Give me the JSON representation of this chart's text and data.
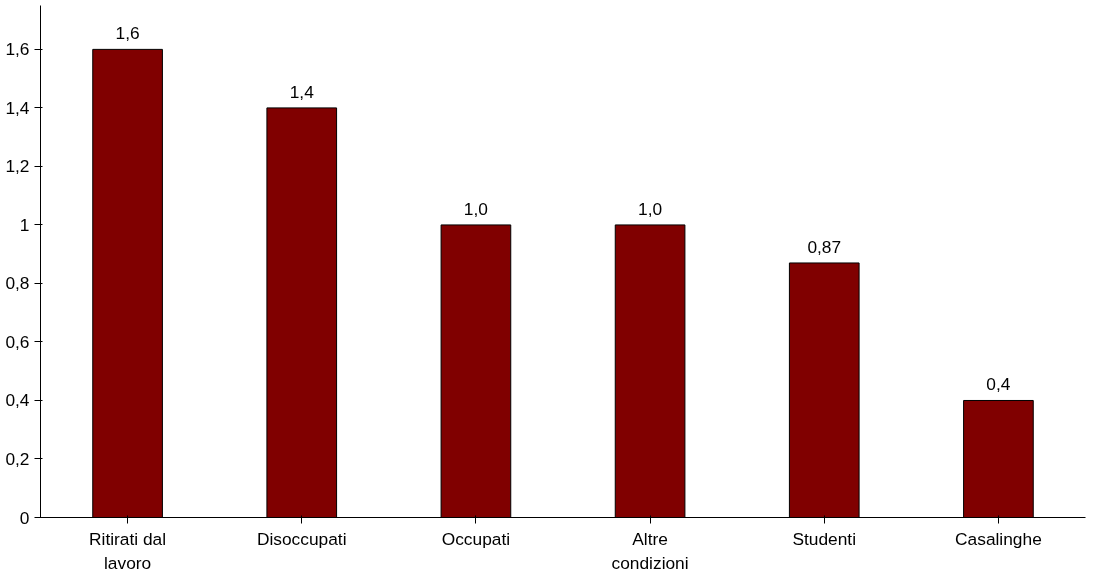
{
  "chart_data": {
    "type": "bar",
    "categories": [
      "Ritirati dal lavoro",
      "Disoccupati",
      "Occupati",
      "Altre condizioni",
      "Studenti",
      "Casalinghe"
    ],
    "values": [
      1.6,
      1.4,
      1.0,
      1.0,
      0.87,
      0.4
    ],
    "color": "#800000",
    "value_labels": [
      "1,6",
      "1,4",
      "1,0",
      "1,0",
      "0,87",
      "0,4"
    ],
    "ylim": [
      0,
      1.75
    ],
    "yticks": [
      0,
      {
        "value": 0.2,
        "label": "0,2"
      },
      {
        "value": 0.4,
        "label": "0,4"
      },
      {
        "value": 0.6,
        "label": "0,6"
      },
      {
        "value": 0.8,
        "label": "0,8"
      },
      1,
      {
        "value": 1.2,
        "label": "1,2"
      },
      {
        "value": 1.4,
        "label": "1,4"
      },
      {
        "value": 1.6,
        "label": "1,6"
      }
    ]
  }
}
